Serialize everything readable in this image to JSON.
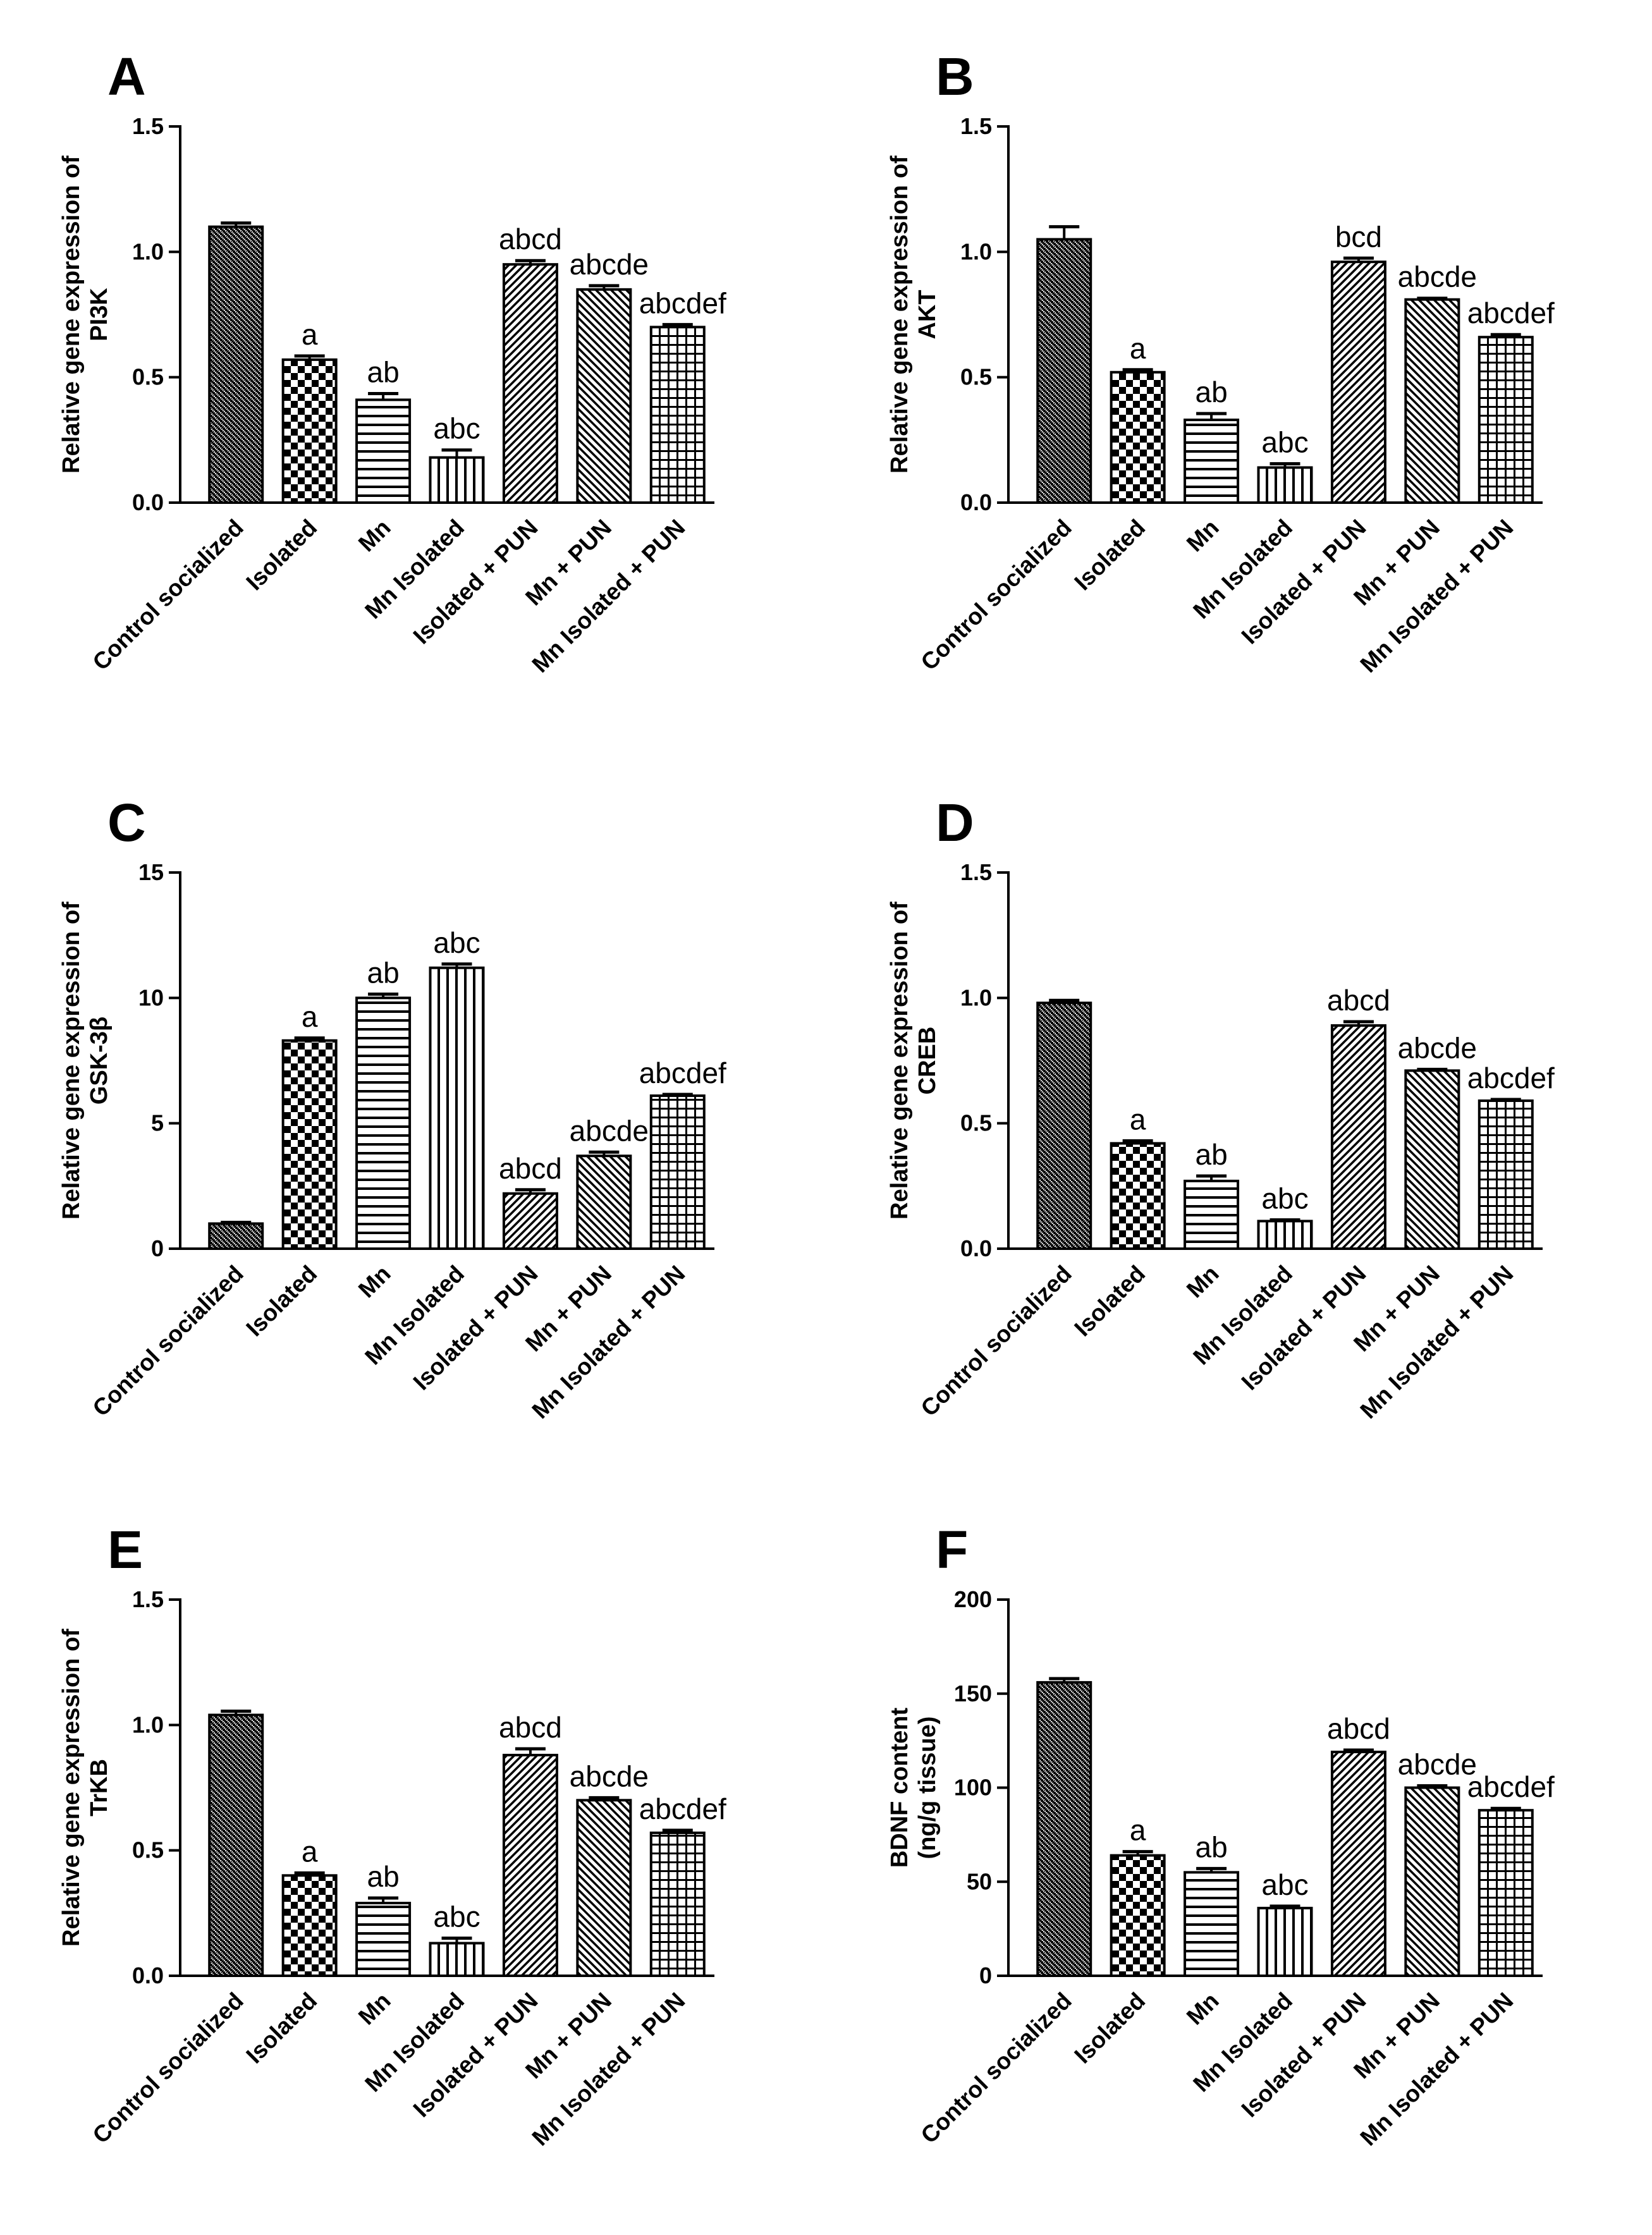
{
  "chart_data": [
    {
      "id": "A",
      "type": "bar",
      "panel_label": "A",
      "ylabel": [
        "Relative gene expression of",
        "PI3K"
      ],
      "categories": [
        "Control socialized",
        "Isolated",
        "Mn",
        "Mn Isolated",
        "Isolated + PUN",
        "Mn + PUN",
        "Mn Isolated + PUN"
      ],
      "values": [
        1.1,
        0.57,
        0.41,
        0.18,
        0.95,
        0.85,
        0.7
      ],
      "errors": [
        0.015,
        0.015,
        0.025,
        0.03,
        0.015,
        0.015,
        0.01
      ],
      "annotations": [
        "",
        "a",
        "ab",
        "abc",
        "abcd",
        "abcde",
        "abcdef"
      ],
      "ylim": [
        0,
        1.5
      ],
      "yticks": [
        "0.0",
        "0.5",
        "1.0",
        "1.5"
      ],
      "tick_values": [
        0,
        0.5,
        1.0,
        1.5
      ]
    },
    {
      "id": "B",
      "type": "bar",
      "panel_label": "B",
      "ylabel": [
        "Relative gene expression of",
        "AKT"
      ],
      "categories": [
        "Control socialized",
        "Isolated",
        "Mn",
        "Mn Isolated",
        "Isolated + PUN",
        "Mn + PUN",
        "Mn Isolated + PUN"
      ],
      "values": [
        1.05,
        0.52,
        0.33,
        0.14,
        0.96,
        0.81,
        0.66
      ],
      "errors": [
        0.05,
        0.01,
        0.025,
        0.015,
        0.015,
        0.005,
        0.01
      ],
      "annotations": [
        "",
        "a",
        "ab",
        "abc",
        "bcd",
        "abcde",
        "abcdef"
      ],
      "ylim": [
        0,
        1.5
      ],
      "yticks": [
        "0.0",
        "0.5",
        "1.0",
        "1.5"
      ],
      "tick_values": [
        0,
        0.5,
        1.0,
        1.5
      ]
    },
    {
      "id": "C",
      "type": "bar",
      "panel_label": "C",
      "ylabel": [
        "Relative gene expression of",
        "GSK-3β"
      ],
      "categories": [
        "Control socialized",
        "Isolated",
        "Mn",
        "Mn Isolated",
        "Isolated + PUN",
        "Mn + PUN",
        "Mn Isolated + PUN"
      ],
      "values": [
        1.0,
        8.3,
        10.0,
        11.2,
        2.2,
        3.7,
        6.1
      ],
      "errors": [
        0.05,
        0.1,
        0.15,
        0.15,
        0.15,
        0.15,
        0.05
      ],
      "annotations": [
        "",
        "a",
        "ab",
        "abc",
        "abcd",
        "abcde",
        "abcdef"
      ],
      "ylim": [
        0,
        15
      ],
      "yticks": [
        "0",
        "5",
        "10",
        "15"
      ],
      "tick_values": [
        0,
        5,
        10,
        15
      ]
    },
    {
      "id": "D",
      "type": "bar",
      "panel_label": "D",
      "ylabel": [
        "Relative gene expression of",
        "CREB"
      ],
      "categories": [
        "Control socialized",
        "Isolated",
        "Mn",
        "Mn Isolated",
        "Isolated + PUN",
        "Mn + PUN",
        "Mn Isolated + PUN"
      ],
      "values": [
        0.98,
        0.42,
        0.27,
        0.11,
        0.89,
        0.71,
        0.59
      ],
      "errors": [
        0.01,
        0.01,
        0.02,
        0.005,
        0.015,
        0.005,
        0.005
      ],
      "annotations": [
        "",
        "a",
        "ab",
        "abc",
        "abcd",
        "abcde",
        "abcdef"
      ],
      "ylim": [
        0,
        1.5
      ],
      "yticks": [
        "0.0",
        "0.5",
        "1.0",
        "1.5"
      ],
      "tick_values": [
        0,
        0.5,
        1.0,
        1.5
      ]
    },
    {
      "id": "E",
      "type": "bar",
      "panel_label": "E",
      "ylabel": [
        "Relative gene expression of",
        "TrKB"
      ],
      "categories": [
        "Control socialized",
        "Isolated",
        "Mn",
        "Mn Isolated",
        "Isolated + PUN",
        "Mn + PUN",
        "Mn Isolated + PUN"
      ],
      "values": [
        1.04,
        0.4,
        0.29,
        0.13,
        0.88,
        0.7,
        0.57
      ],
      "errors": [
        0.015,
        0.01,
        0.02,
        0.02,
        0.025,
        0.01,
        0.01
      ],
      "annotations": [
        "",
        "a",
        "ab",
        "abc",
        "abcd",
        "abcde",
        "abcdef"
      ],
      "ylim": [
        0,
        1.5
      ],
      "yticks": [
        "0.0",
        "0.5",
        "1.0",
        "1.5"
      ],
      "tick_values": [
        0,
        0.5,
        1.0,
        1.5
      ]
    },
    {
      "id": "F",
      "type": "bar",
      "panel_label": "F",
      "ylabel": [
        "BDNF content",
        "(ng/g tissue)"
      ],
      "categories": [
        "Control socialized",
        "Isolated",
        "Mn",
        "Mn Isolated",
        "Isolated + PUN",
        "Mn + PUN",
        "Mn Isolated + PUN"
      ],
      "values": [
        156,
        64,
        55,
        36,
        119,
        100,
        88
      ],
      "errors": [
        2,
        2,
        2,
        1,
        1,
        1,
        1
      ],
      "annotations": [
        "",
        "a",
        "ab",
        "abc",
        "abcd",
        "abcde",
        "abcdef"
      ],
      "ylim": [
        0,
        200
      ],
      "yticks": [
        "0",
        "50",
        "100",
        "150",
        "200"
      ],
      "tick_values": [
        0,
        50,
        100,
        150,
        200
      ]
    }
  ],
  "colors": {
    "ink": "#000000",
    "background": "#ffffff"
  },
  "bar_patterns": [
    "checker-fine",
    "checker-coarse",
    "hlines",
    "vlines",
    "diag-right",
    "diag-left",
    "grid"
  ]
}
